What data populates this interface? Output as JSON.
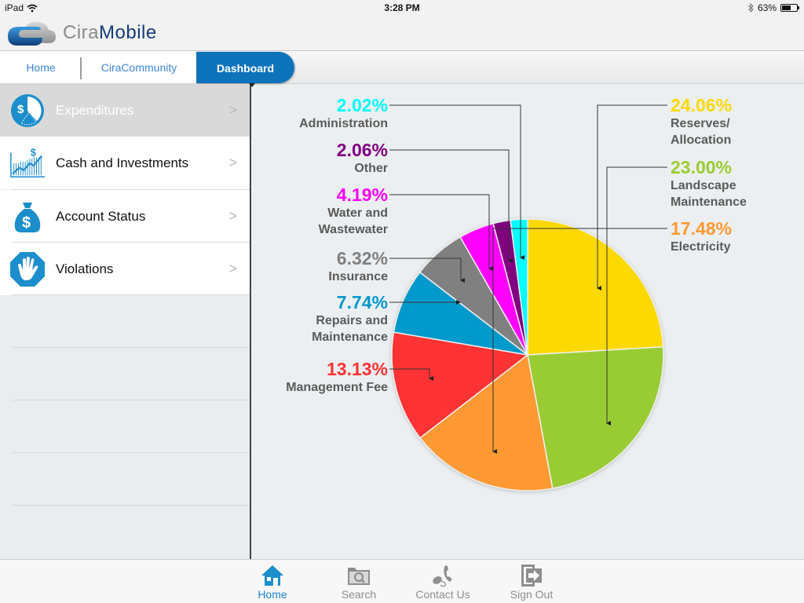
{
  "status_bar": {
    "device": "iPad",
    "time": "3:28 PM",
    "battery_percent": "63%",
    "battery_level": 0.63
  },
  "app": {
    "logo_part1": "CiraMobile",
    "logo_cira": "Cira",
    "logo_mobile": "Mobile"
  },
  "nav": {
    "tabs": [
      {
        "label": "Home"
      },
      {
        "label": "CiraCommunity"
      },
      {
        "label": "Dashboard",
        "active": true
      }
    ]
  },
  "sidebar": {
    "items": [
      {
        "label": "Expenditures",
        "icon": "pie-dollar-icon",
        "active": true
      },
      {
        "label": "Cash and Investments",
        "icon": "growth-chart-icon"
      },
      {
        "label": "Account Status",
        "icon": "money-bag-icon"
      },
      {
        "label": "Violations",
        "icon": "stop-hand-icon"
      }
    ],
    "chevron": ">"
  },
  "chart_data": {
    "type": "pie",
    "title": "Expenditures",
    "start_angle": "12 o'clock",
    "direction": "clockwise",
    "slices": [
      {
        "label": "Reserves/ Allocation",
        "lines": [
          "Reserves/",
          "Allocation"
        ],
        "value": 24.06,
        "pct": "24.06%",
        "color": "#fcd900",
        "side": "right"
      },
      {
        "label": "Landscape Maintenance",
        "lines": [
          "Landscape",
          "Maintenance"
        ],
        "value": 23.0,
        "pct": "23.00%",
        "color": "#99cc33",
        "side": "right"
      },
      {
        "label": "Electricity",
        "lines": [
          "Electricity"
        ],
        "value": 17.48,
        "pct": "17.48%",
        "color": "#ff9933",
        "side": "right"
      },
      {
        "label": "Management Fee",
        "lines": [
          "Management Fee"
        ],
        "value": 13.13,
        "pct": "13.13%",
        "color": "#ff3333",
        "side": "left"
      },
      {
        "label": "Repairs and Maintenance",
        "lines": [
          "Repairs and",
          "Maintenance"
        ],
        "value": 7.74,
        "pct": "7.74%",
        "color": "#0099cc",
        "side": "left"
      },
      {
        "label": "Insurance",
        "lines": [
          "Insurance"
        ],
        "value": 6.32,
        "pct": "6.32%",
        "color": "#808080",
        "side": "left"
      },
      {
        "label": "Water and Wastewater",
        "lines": [
          "Water and",
          "Wastewater"
        ],
        "value": 4.19,
        "pct": "4.19%",
        "color": "#ff00ff",
        "side": "left"
      },
      {
        "label": "Other",
        "lines": [
          "Other"
        ],
        "value": 2.06,
        "pct": "2.06%",
        "color": "#800080",
        "side": "left"
      },
      {
        "label": "Administration",
        "lines": [
          "Administration"
        ],
        "value": 2.02,
        "pct": "2.02%",
        "color": "#00ffff",
        "side": "left"
      }
    ]
  },
  "tabbar": {
    "items": [
      {
        "label": "Home",
        "icon": "home-icon",
        "active": true
      },
      {
        "label": "Search",
        "icon": "folder-search-icon"
      },
      {
        "label": "Contact Us",
        "icon": "phone-mouse-icon"
      },
      {
        "label": "Sign Out",
        "icon": "sign-out-icon"
      }
    ]
  },
  "colors": {
    "accent": "#0d73bb",
    "link": "#3a87d8",
    "tab_active": "#1a84d6"
  }
}
